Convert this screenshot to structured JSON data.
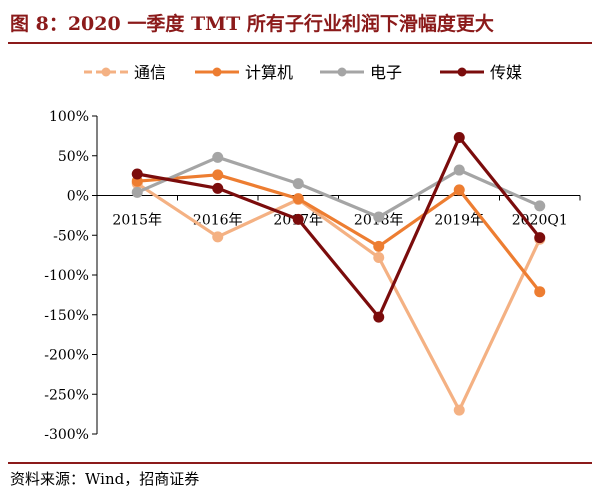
{
  "figure": {
    "title": "图 8：2020 一季度 TMT 所有子行业利润下滑幅度更大",
    "source": "资料来源：Wind，招商证券"
  },
  "colors": {
    "tongxin": "#f4b183",
    "jisuanji": "#ed7d31",
    "dianzi": "#a5a5a5",
    "chuanmei": "#7b0c0c",
    "accent": "#8b1a1a"
  },
  "chart_data": {
    "type": "line",
    "title": "",
    "xlabel": "",
    "ylabel": "",
    "categories": [
      "2015年",
      "2016年",
      "2017年",
      "2018年",
      "2019年",
      "2020Q1"
    ],
    "yticks": [
      "100%",
      "50%",
      "0%",
      "-50%",
      "-100%",
      "-150%",
      "-200%",
      "-250%",
      "-300%"
    ],
    "ylim": [
      -300,
      100
    ],
    "legend_position": "top",
    "grid": false,
    "series": [
      {
        "name": "通信",
        "color": "#f4b183",
        "values": [
          15,
          -52,
          -5,
          -78,
          -270,
          -55
        ]
      },
      {
        "name": "计算机",
        "color": "#ed7d31",
        "values": [
          18,
          26,
          -4,
          -64,
          7,
          -121
        ]
      },
      {
        "name": "电子",
        "color": "#a5a5a5",
        "values": [
          4,
          48,
          15,
          -27,
          32,
          -13
        ]
      },
      {
        "name": "传媒",
        "color": "#7b0c0c",
        "values": [
          27,
          9,
          -30,
          -153,
          73,
          -53
        ]
      }
    ]
  }
}
